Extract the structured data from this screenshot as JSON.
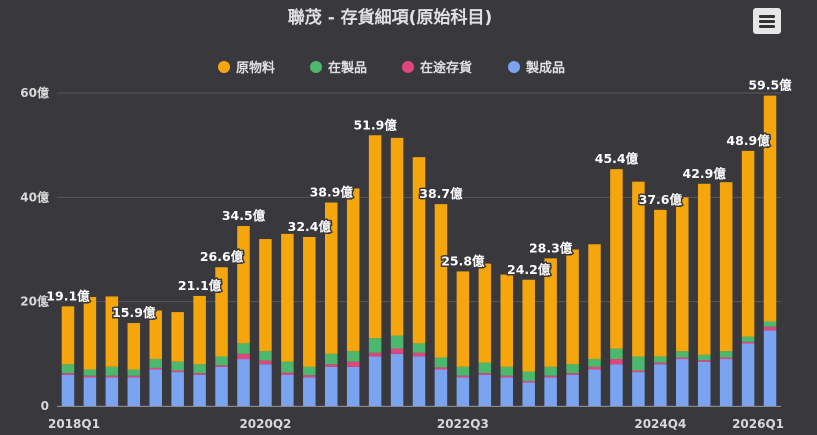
{
  "chart_data": {
    "type": "bar",
    "stacked": true,
    "title": "聯茂 - 存貨細項(原始科目)",
    "legend_position": "top",
    "grid": true,
    "ylim": [
      0,
      60
    ],
    "yticks": [
      "0",
      "20億",
      "40億",
      "60億"
    ],
    "categories": [
      "2018Q1",
      "2018Q2",
      "2018Q3",
      "2018Q4",
      "2019Q1",
      "2019Q2",
      "2019Q3",
      "2019Q4",
      "2020Q1",
      "2020Q2",
      "2020Q3",
      "2020Q4",
      "2021Q1",
      "2021Q2",
      "2021Q3",
      "2021Q4",
      "2022Q1",
      "2022Q2",
      "2022Q3",
      "2022Q4",
      "2023Q1",
      "2023Q2",
      "2023Q3",
      "2023Q4",
      "2024Q1",
      "2024Q2",
      "2024Q3",
      "2024Q4",
      "2025Q1",
      "2025Q2",
      "2025Q3",
      "2025Q4",
      "2026Q1"
    ],
    "xtick_labels": [
      "2018Q1",
      "2020Q2",
      "2022Q3",
      "2024Q4",
      "2026Q1"
    ],
    "series": [
      {
        "name": "製成品",
        "color": "#7ba4f0",
        "values": [
          6,
          5.5,
          5.5,
          5.5,
          7,
          6.5,
          6,
          7.5,
          9,
          8,
          6,
          5.5,
          7.5,
          7.5,
          9.5,
          10,
          9.5,
          7,
          5.5,
          6,
          5.5,
          4.5,
          5.5,
          6,
          7,
          8,
          6.5,
          8,
          9,
          8.5,
          9,
          12,
          14.5
        ]
      },
      {
        "name": "在途存貨",
        "color": "#e0457b",
        "values": [
          0.3,
          0.3,
          0.3,
          0.3,
          0.3,
          0.3,
          0.3,
          0.3,
          1,
          0.7,
          0.4,
          0.4,
          0.5,
          1,
          0.7,
          1,
          0.7,
          0.4,
          0.3,
          0.3,
          0.3,
          0.3,
          0.3,
          0.3,
          0.5,
          1,
          0.3,
          0.3,
          0.3,
          0.3,
          0.3,
          0.3,
          0.7
        ]
      },
      {
        "name": "在製品",
        "color": "#4cb86e",
        "values": [
          1.7,
          1.2,
          1.7,
          1.2,
          1.7,
          1.7,
          1.7,
          1.7,
          2,
          1.8,
          2.1,
          1.6,
          2,
          2,
          2.8,
          2.5,
          1.8,
          1.9,
          1.7,
          2,
          1.7,
          1.8,
          1.7,
          1.7,
          1.5,
          2,
          2.7,
          1.2,
          1.2,
          1,
          1.2,
          1,
          1
        ]
      },
      {
        "name": "原物料",
        "color": "#f5a60d",
        "values": [
          11.1,
          13.9,
          13.5,
          8.9,
          9.3,
          9.5,
          13.1,
          17.1,
          22.5,
          21.5,
          24.5,
          24.9,
          29,
          31.2,
          38.9,
          37.9,
          35.7,
          29.4,
          18.3,
          19,
          17.7,
          17.6,
          20.8,
          22,
          22,
          34.4,
          33.5,
          28.1,
          29.5,
          32.8,
          32.4,
          35.6,
          43.3
        ]
      }
    ],
    "data_labels": [
      {
        "index": 0,
        "text": "19.1億"
      },
      {
        "index": 3,
        "text": "15.9億"
      },
      {
        "index": 6,
        "text": "21.1億"
      },
      {
        "index": 7,
        "text": "26.6億"
      },
      {
        "index": 8,
        "text": "34.5億"
      },
      {
        "index": 11,
        "text": "32.4億"
      },
      {
        "index": 12,
        "text": "38.9億"
      },
      {
        "index": 14,
        "text": "51.9億"
      },
      {
        "index": 17,
        "text": "38.7億"
      },
      {
        "index": 18,
        "text": "25.8億"
      },
      {
        "index": 21,
        "text": "24.2億"
      },
      {
        "index": 22,
        "text": "28.3億"
      },
      {
        "index": 25,
        "text": "45.4億"
      },
      {
        "index": 27,
        "text": "37.6億"
      },
      {
        "index": 29,
        "text": "42.9億"
      },
      {
        "index": 31,
        "text": "48.9億"
      },
      {
        "index": 32,
        "text": "59.5億"
      }
    ]
  },
  "menu": {
    "icon": "hamburger-menu-icon"
  }
}
